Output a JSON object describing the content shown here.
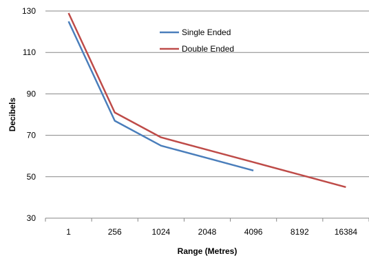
{
  "chart_data": {
    "type": "line",
    "title": "",
    "xlabel": "Range (Metres)",
    "ylabel": "Decibels",
    "categories": [
      "1",
      "256",
      "1024",
      "2048",
      "4096",
      "8192",
      "16384"
    ],
    "ylim": [
      30,
      130
    ],
    "yticks": [
      30,
      50,
      70,
      90,
      110,
      130
    ],
    "grid": "horizontal",
    "legend_position": "top-center",
    "series": [
      {
        "name": "Single Ended",
        "color": "#4a7ebb",
        "values": [
          125,
          77,
          65,
          59,
          53,
          null,
          null
        ]
      },
      {
        "name": "Double Ended",
        "color": "#be4b48",
        "values": [
          129,
          81,
          69,
          63,
          57,
          51,
          45
        ]
      }
    ]
  }
}
